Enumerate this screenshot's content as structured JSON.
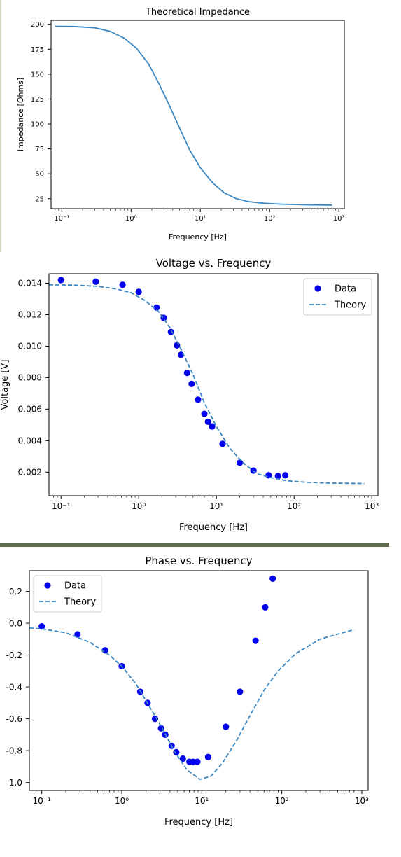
{
  "chart_data": [
    {
      "type": "line",
      "title": "Theoretical Impedance",
      "xlabel": "Frequency [Hz]",
      "ylabel": "Impedance [Ohms]",
      "xscale": "log",
      "xlim": [
        0.07,
        1200
      ],
      "ylim": [
        15,
        204
      ],
      "grid": false,
      "legend": "none",
      "line_color": "#3b87c1",
      "x_ticks": [
        0.1,
        1,
        10,
        100,
        1000
      ],
      "x_tick_labels": [
        "10⁻¹",
        "10⁰",
        "10¹",
        "10²",
        "10³"
      ],
      "y_ticks": [
        25,
        50,
        75,
        100,
        125,
        150,
        175,
        200
      ],
      "series": [
        {
          "name": "",
          "style": "solid",
          "x": [
            0.08,
            0.15,
            0.3,
            0.5,
            0.8,
            1.2,
            1.8,
            2.5,
            3.5,
            5,
            7,
            10,
            15,
            22,
            33,
            50,
            80,
            150,
            300,
            800
          ],
          "y": [
            198,
            197.8,
            196.5,
            193,
            186,
            176,
            160,
            141,
            120,
            96,
            74,
            56,
            41,
            31,
            25,
            22,
            20.5,
            19.5,
            19,
            18.5
          ]
        }
      ]
    },
    {
      "type": "scatter",
      "title": "Voltage vs. Frequency",
      "xlabel": "Frequency [Hz]",
      "ylabel": "Voltage [V]",
      "xscale": "log",
      "xlim": [
        0.07,
        1200
      ],
      "ylim": [
        0.0005,
        0.0146
      ],
      "grid": false,
      "legend": "top-right",
      "x_ticks": [
        0.1,
        1,
        10,
        100,
        1000
      ],
      "x_tick_labels": [
        "10⁻¹",
        "10⁰",
        "10¹",
        "10²",
        "10³"
      ],
      "y_ticks": [
        0.002,
        0.004,
        0.006,
        0.008,
        0.01,
        0.012,
        0.014
      ],
      "y_tick_labels": [
        "0.002",
        "0.004",
        "0.006",
        "0.008",
        "0.010",
        "0.012",
        "0.014"
      ],
      "series": [
        {
          "name": "Data",
          "style": "markers",
          "color": "#0000ee",
          "x": [
            0.1,
            0.28,
            0.62,
            1.0,
            1.7,
            2.1,
            2.6,
            3.1,
            3.5,
            4.2,
            4.8,
            5.8,
            7.0,
            7.8,
            8.8,
            12,
            20,
            30,
            47,
            62,
            77
          ],
          "y": [
            0.0142,
            0.0141,
            0.0139,
            0.01345,
            0.01245,
            0.0118,
            0.0109,
            0.01005,
            0.00945,
            0.0083,
            0.0076,
            0.0066,
            0.0057,
            0.0052,
            0.0049,
            0.0038,
            0.0026,
            0.0021,
            0.0018,
            0.00175,
            0.0018
          ]
        },
        {
          "name": "Theory",
          "style": "dashed",
          "color": "#3b87c1",
          "x": [
            0.07,
            0.15,
            0.3,
            0.5,
            0.8,
            1.2,
            1.8,
            2.5,
            3.5,
            5,
            7,
            10,
            15,
            22,
            33,
            50,
            80,
            150,
            300,
            800
          ],
          "y": [
            0.0139,
            0.01388,
            0.0138,
            0.01365,
            0.0134,
            0.0129,
            0.0122,
            0.0112,
            0.0098,
            0.0082,
            0.0064,
            0.0049,
            0.0035,
            0.0026,
            0.0019,
            0.00165,
            0.00145,
            0.00135,
            0.0013,
            0.00128
          ]
        }
      ]
    },
    {
      "type": "scatter",
      "title": "Phase vs. Frequency",
      "xlabel": "Frequency [Hz]",
      "ylabel": "",
      "xscale": "log",
      "xlim": [
        0.07,
        1200
      ],
      "ylim": [
        -1.05,
        0.33
      ],
      "grid": false,
      "legend": "top-left",
      "x_ticks": [
        0.1,
        1,
        10,
        100,
        1000
      ],
      "x_tick_labels": [
        "10⁻¹",
        "10⁰",
        "10¹",
        "10²",
        "10³"
      ],
      "y_ticks": [
        0.2,
        0.0,
        -0.2,
        -0.4,
        -0.6,
        -0.8,
        -1.0
      ],
      "y_tick_labels": [
        "0.2",
        "0.0",
        "-0.2",
        "-0.4",
        "-0.6",
        "-0.8",
        "-1.0"
      ],
      "series": [
        {
          "name": "Data",
          "style": "markers",
          "color": "#0000ee",
          "x": [
            0.1,
            0.28,
            0.62,
            1.0,
            1.7,
            2.1,
            2.6,
            3.1,
            3.5,
            4.2,
            4.8,
            5.8,
            7.0,
            7.8,
            8.8,
            12,
            20,
            30,
            47,
            62,
            77
          ],
          "y": [
            -0.02,
            -0.07,
            -0.17,
            -0.27,
            -0.43,
            -0.5,
            -0.6,
            -0.66,
            -0.7,
            -0.77,
            -0.81,
            -0.85,
            -0.87,
            -0.87,
            -0.87,
            -0.84,
            -0.65,
            -0.43,
            -0.11,
            0.1,
            0.28
          ]
        },
        {
          "name": "Theory",
          "style": "dashed",
          "color": "#3b87c1",
          "x": [
            0.07,
            0.1,
            0.2,
            0.4,
            0.7,
            1.0,
            1.5,
            2.2,
            3.2,
            4.5,
            6.5,
            9.5,
            13,
            18,
            27,
            40,
            60,
            90,
            150,
            300,
            800
          ],
          "y": [
            -0.03,
            -0.035,
            -0.06,
            -0.12,
            -0.2,
            -0.27,
            -0.38,
            -0.52,
            -0.66,
            -0.8,
            -0.92,
            -0.98,
            -0.96,
            -0.88,
            -0.74,
            -0.58,
            -0.42,
            -0.3,
            -0.19,
            -0.1,
            -0.04
          ]
        }
      ]
    }
  ]
}
